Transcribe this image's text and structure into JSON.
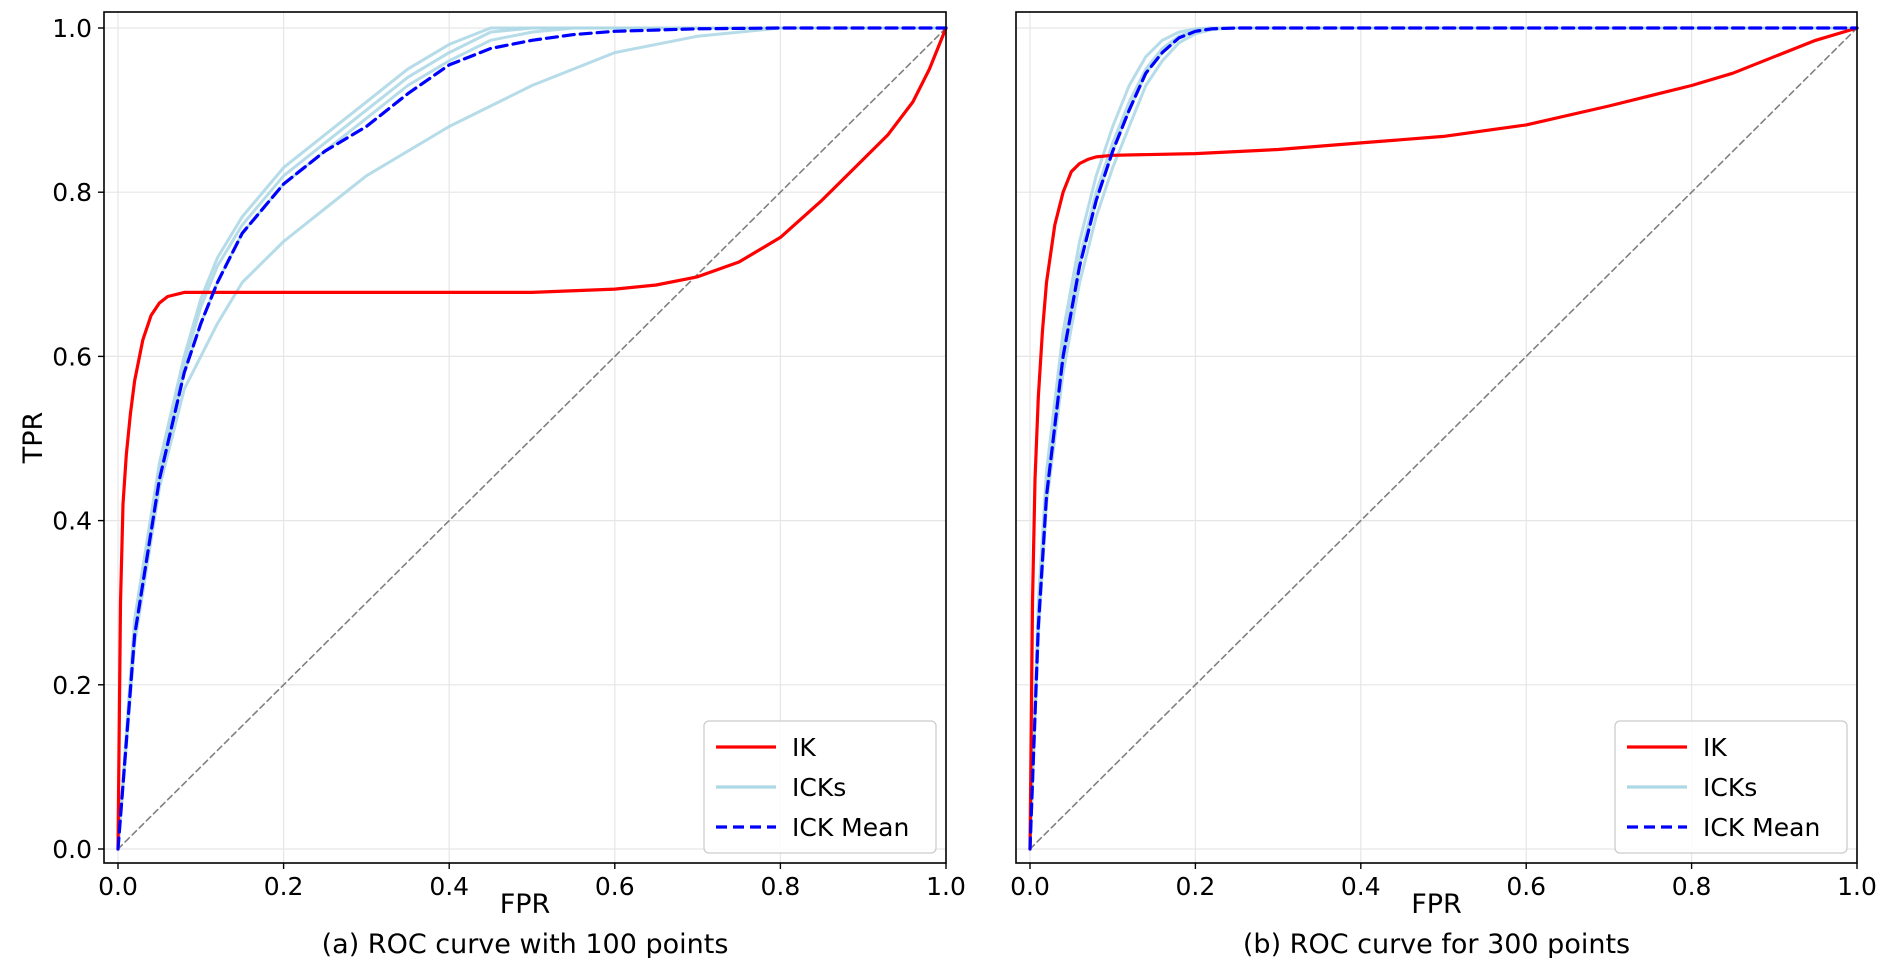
{
  "chart_data": [
    {
      "type": "line",
      "caption": "(a) ROC curve with 100 points",
      "xlabel": "FPR",
      "ylabel": "TPR",
      "xlim": [
        0,
        1
      ],
      "ylim": [
        0,
        1
      ],
      "xticks": [
        "0.0",
        "0.2",
        "0.4",
        "0.6",
        "0.8",
        "1.0"
      ],
      "yticks": [
        "0.0",
        "0.2",
        "0.4",
        "0.6",
        "0.8",
        "1.0"
      ],
      "grid": true,
      "legend": {
        "position": "bottom-right",
        "entries": [
          "IK",
          "ICKs",
          "ICK Mean"
        ]
      },
      "series": [
        {
          "name": "IK",
          "color": "#ff0000",
          "style": "solid",
          "x": [
            0,
            0.003,
            0.006,
            0.01,
            0.015,
            0.02,
            0.03,
            0.04,
            0.05,
            0.06,
            0.08,
            0.1,
            0.2,
            0.3,
            0.4,
            0.5,
            0.6,
            0.65,
            0.7,
            0.75,
            0.8,
            0.85,
            0.9,
            0.93,
            0.96,
            0.98,
            1.0
          ],
          "y": [
            0,
            0.3,
            0.42,
            0.48,
            0.53,
            0.57,
            0.62,
            0.65,
            0.665,
            0.673,
            0.678,
            0.678,
            0.678,
            0.678,
            0.678,
            0.678,
            0.682,
            0.687,
            0.697,
            0.715,
            0.745,
            0.79,
            0.84,
            0.87,
            0.91,
            0.95,
            1.0
          ]
        },
        {
          "name": "ICKs",
          "color": "#add8e6",
          "style": "solid",
          "x": [
            0,
            0.02,
            0.05,
            0.08,
            0.1,
            0.12,
            0.15,
            0.2,
            0.25,
            0.3,
            0.35,
            0.4,
            0.45,
            0.5,
            1.0
          ],
          "y": [
            0,
            0.28,
            0.47,
            0.6,
            0.67,
            0.72,
            0.77,
            0.83,
            0.87,
            0.91,
            0.95,
            0.98,
            1.0,
            1.0,
            1.0
          ]
        },
        {
          "name": "ICKs",
          "color": "#add8e6",
          "style": "solid",
          "x": [
            0,
            0.02,
            0.05,
            0.08,
            0.1,
            0.12,
            0.15,
            0.2,
            0.25,
            0.3,
            0.35,
            0.4,
            0.45,
            0.5,
            1.0
          ],
          "y": [
            0,
            0.27,
            0.46,
            0.59,
            0.66,
            0.71,
            0.76,
            0.82,
            0.86,
            0.9,
            0.94,
            0.97,
            0.995,
            1.0,
            1.0
          ]
        },
        {
          "name": "ICKs",
          "color": "#add8e6",
          "style": "solid",
          "x": [
            0,
            0.02,
            0.05,
            0.08,
            0.1,
            0.12,
            0.15,
            0.2,
            0.25,
            0.3,
            0.35,
            0.4,
            0.45,
            0.5,
            0.55,
            1.0
          ],
          "y": [
            0,
            0.26,
            0.45,
            0.58,
            0.64,
            0.69,
            0.75,
            0.81,
            0.85,
            0.89,
            0.93,
            0.96,
            0.985,
            0.995,
            1.0,
            1.0
          ]
        },
        {
          "name": "ICKs",
          "color": "#add8e6",
          "style": "solid",
          "x": [
            0,
            0.02,
            0.05,
            0.08,
            0.1,
            0.12,
            0.15,
            0.2,
            0.25,
            0.3,
            0.4,
            0.5,
            0.6,
            0.7,
            0.8,
            1.0
          ],
          "y": [
            0,
            0.25,
            0.44,
            0.56,
            0.6,
            0.64,
            0.69,
            0.74,
            0.78,
            0.82,
            0.88,
            0.93,
            0.97,
            0.99,
            1.0,
            1.0
          ]
        },
        {
          "name": "ICK Mean",
          "color": "#0000ff",
          "style": "dashed",
          "x": [
            0,
            0.02,
            0.05,
            0.08,
            0.1,
            0.12,
            0.15,
            0.2,
            0.25,
            0.3,
            0.35,
            0.4,
            0.45,
            0.5,
            0.55,
            0.6,
            0.7,
            0.8,
            1.0
          ],
          "y": [
            0,
            0.26,
            0.45,
            0.58,
            0.64,
            0.69,
            0.75,
            0.81,
            0.85,
            0.88,
            0.92,
            0.955,
            0.975,
            0.985,
            0.992,
            0.996,
            0.999,
            1.0,
            1.0
          ]
        },
        {
          "name": "chance",
          "color": "#808080",
          "style": "dashed",
          "x": [
            0,
            1
          ],
          "y": [
            0,
            1
          ]
        }
      ]
    },
    {
      "type": "line",
      "caption": "(b) ROC curve for 300 points",
      "xlabel": "FPR",
      "ylabel": "",
      "xlim": [
        0,
        1
      ],
      "ylim": [
        0,
        1
      ],
      "xticks": [
        "0.0",
        "0.2",
        "0.4",
        "0.6",
        "0.8",
        "1.0"
      ],
      "yticks": [],
      "grid": true,
      "legend": {
        "position": "bottom-right",
        "entries": [
          "IK",
          "ICKs",
          "ICK Mean"
        ]
      },
      "series": [
        {
          "name": "IK",
          "color": "#ff0000",
          "style": "solid",
          "x": [
            0,
            0.003,
            0.006,
            0.01,
            0.015,
            0.02,
            0.03,
            0.04,
            0.05,
            0.06,
            0.07,
            0.08,
            0.1,
            0.2,
            0.3,
            0.4,
            0.5,
            0.6,
            0.7,
            0.8,
            0.85,
            0.9,
            0.95,
            1.0
          ],
          "y": [
            0,
            0.3,
            0.45,
            0.55,
            0.63,
            0.69,
            0.76,
            0.8,
            0.825,
            0.835,
            0.84,
            0.843,
            0.845,
            0.847,
            0.852,
            0.86,
            0.868,
            0.882,
            0.905,
            0.93,
            0.945,
            0.965,
            0.985,
            1.0
          ]
        },
        {
          "name": "ICKs",
          "color": "#add8e6",
          "style": "solid",
          "x": [
            0,
            0.01,
            0.02,
            0.04,
            0.06,
            0.08,
            0.1,
            0.12,
            0.14,
            0.16,
            0.18,
            0.2,
            0.22,
            1.0
          ],
          "y": [
            0,
            0.3,
            0.46,
            0.63,
            0.74,
            0.82,
            0.88,
            0.93,
            0.965,
            0.985,
            0.995,
            0.999,
            1.0,
            1.0
          ]
        },
        {
          "name": "ICKs",
          "color": "#add8e6",
          "style": "solid",
          "x": [
            0,
            0.01,
            0.02,
            0.04,
            0.06,
            0.08,
            0.1,
            0.12,
            0.14,
            0.16,
            0.18,
            0.2,
            0.22,
            1.0
          ],
          "y": [
            0,
            0.28,
            0.44,
            0.61,
            0.72,
            0.8,
            0.86,
            0.91,
            0.95,
            0.975,
            0.99,
            0.997,
            1.0,
            1.0
          ]
        },
        {
          "name": "ICKs",
          "color": "#add8e6",
          "style": "solid",
          "x": [
            0,
            0.01,
            0.02,
            0.04,
            0.06,
            0.08,
            0.1,
            0.12,
            0.14,
            0.16,
            0.18,
            0.2,
            0.22,
            1.0
          ],
          "y": [
            0,
            0.27,
            0.43,
            0.6,
            0.71,
            0.79,
            0.85,
            0.9,
            0.945,
            0.97,
            0.988,
            0.996,
            1.0,
            1.0
          ]
        },
        {
          "name": "ICKs",
          "color": "#add8e6",
          "style": "solid",
          "x": [
            0,
            0.01,
            0.02,
            0.04,
            0.06,
            0.08,
            0.1,
            0.12,
            0.14,
            0.16,
            0.18,
            0.2,
            0.22,
            0.24,
            1.0
          ],
          "y": [
            0,
            0.26,
            0.42,
            0.58,
            0.69,
            0.77,
            0.83,
            0.88,
            0.93,
            0.96,
            0.982,
            0.993,
            0.998,
            1.0,
            1.0
          ]
        },
        {
          "name": "ICK Mean",
          "color": "#0000ff",
          "style": "dashed",
          "x": [
            0,
            0.01,
            0.02,
            0.04,
            0.06,
            0.08,
            0.1,
            0.12,
            0.14,
            0.16,
            0.18,
            0.2,
            0.22,
            0.25,
            1.0
          ],
          "y": [
            0,
            0.27,
            0.43,
            0.6,
            0.71,
            0.79,
            0.85,
            0.9,
            0.945,
            0.97,
            0.988,
            0.996,
            0.999,
            1.0,
            1.0
          ]
        },
        {
          "name": "chance",
          "color": "#808080",
          "style": "dashed",
          "x": [
            0,
            1
          ],
          "y": [
            0,
            1
          ]
        }
      ]
    }
  ]
}
